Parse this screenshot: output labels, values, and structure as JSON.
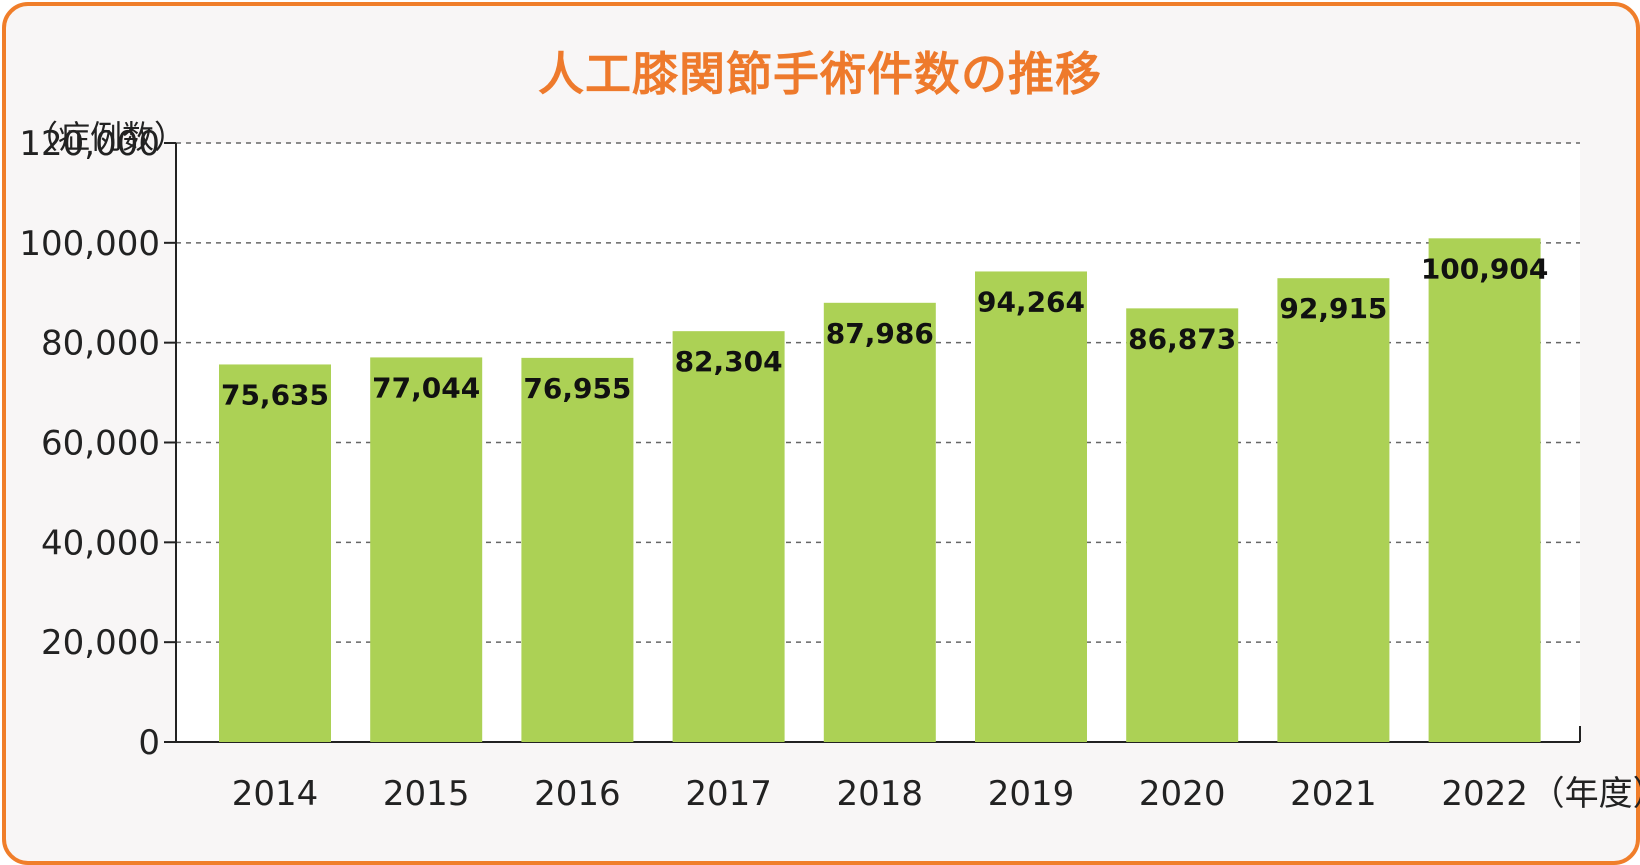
{
  "chart_data": {
    "type": "bar",
    "title": "人工膝関節手術件数の推移",
    "ylabel": "（症例数）",
    "xlabel_unit": "（年度）",
    "categories": [
      "2014",
      "2015",
      "2016",
      "2017",
      "2018",
      "2019",
      "2020",
      "2021",
      "2022"
    ],
    "values": [
      75635,
      77044,
      76955,
      82304,
      87986,
      94264,
      86873,
      92915,
      100904
    ],
    "value_labels": [
      "75,635",
      "77,044",
      "76,955",
      "82,304",
      "87,986",
      "94,264",
      "86,873",
      "92,915",
      "100,904"
    ],
    "ylim": [
      0,
      120000
    ],
    "yticks": [
      0,
      20000,
      40000,
      60000,
      80000,
      100000,
      120000
    ],
    "ytick_labels": [
      "0",
      "20,000",
      "40,000",
      "60,000",
      "80,000",
      "100,000",
      "120,000"
    ],
    "grid": true,
    "colors": {
      "bar": "#acd155",
      "title": "#ee7a2c",
      "frame": "#f07e2a",
      "plot_bg": "#ffffff",
      "card_bg": "#f8f6f6",
      "grid": "#666666"
    }
  }
}
